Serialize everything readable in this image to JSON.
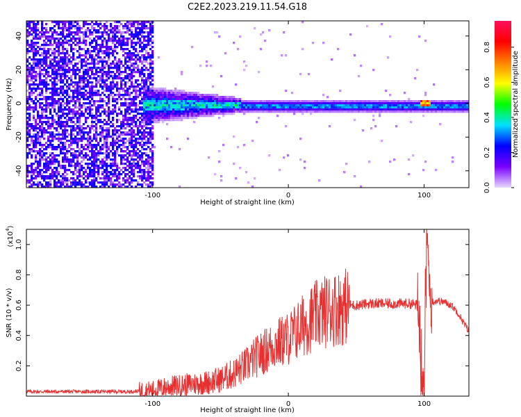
{
  "title": "C2E2.2023.219.11.54.G18",
  "chart_data": [
    {
      "type": "heatmap",
      "xlabel": "Height of straight line (km)",
      "ylabel": "Frequency (Hz)",
      "xlim": [
        -193,
        133
      ],
      "ylim": [
        -50,
        49
      ],
      "xticks": [
        -100,
        0,
        100
      ],
      "yticks": [
        -40,
        -20,
        0,
        20,
        40
      ],
      "colorbar": {
        "label": "Normalized spectral amplitude",
        "range": [
          0,
          0.95
        ],
        "ticks": [
          0.0,
          0.2,
          0.4,
          0.6,
          0.8
        ],
        "colormap": [
          "#e8d8ff",
          "#7a00ff",
          "#0000ff",
          "#00e0ff",
          "#00ff00",
          "#ffff00",
          "#ff8000",
          "#ff0000",
          "#ff1060"
        ]
      },
      "regions": [
        {
          "x_range": [
            -193,
            -100
          ],
          "description_level": "broadband noise",
          "freq_range": [
            -50,
            49
          ],
          "amplitude": 0.1
        },
        {
          "x_range": [
            -108,
            -35
          ],
          "freq_range": [
            -10,
            8
          ],
          "amplitude": 0.25
        },
        {
          "x_range": [
            -35,
            133
          ],
          "freq_center": -1.5,
          "freq_halfwidth": 3,
          "amplitude": 0.3
        },
        {
          "x_range": [
            96,
            104
          ],
          "freq_center": 0,
          "amplitude": 0.85
        }
      ]
    },
    {
      "type": "line",
      "xlabel": "Height of straight line (km)",
      "ylabel": "SNR (10 * v/v)",
      "y_multiplier_label": "(x10",
      "y_multiplier_exp": "4",
      "y_multiplier_close": ")",
      "xlim": [
        -193,
        133
      ],
      "ylim": [
        0,
        1.1
      ],
      "xticks": [
        -100,
        0,
        100
      ],
      "yticks": [
        0.2,
        0.4,
        0.6,
        0.8,
        1.0
      ],
      "color": "#e83030",
      "series": [
        {
          "x": [
            -193,
            -170,
            -150,
            -130,
            -115,
            -100,
            -90,
            -80,
            -70,
            -60,
            -50,
            -45,
            -40,
            -35,
            -30,
            -25,
            -20,
            -15,
            -10,
            -5,
            0,
            5,
            10,
            15,
            20,
            25,
            30,
            35,
            40,
            45,
            50,
            60,
            70,
            80,
            90,
            95,
            98,
            100,
            102,
            105,
            110,
            115,
            120,
            125,
            130,
            133
          ],
          "y": [
            0.03,
            0.03,
            0.03,
            0.03,
            0.03,
            0.04,
            0.06,
            0.07,
            0.08,
            0.09,
            0.11,
            0.13,
            0.15,
            0.18,
            0.21,
            0.25,
            0.28,
            0.31,
            0.34,
            0.36,
            0.38,
            0.42,
            0.46,
            0.5,
            0.53,
            0.55,
            0.57,
            0.58,
            0.59,
            0.6,
            0.6,
            0.61,
            0.61,
            0.61,
            0.61,
            0.6,
            0.4,
            0.08,
            0.9,
            0.62,
            0.63,
            0.62,
            0.6,
            0.55,
            0.47,
            0.43
          ]
        }
      ]
    }
  ]
}
